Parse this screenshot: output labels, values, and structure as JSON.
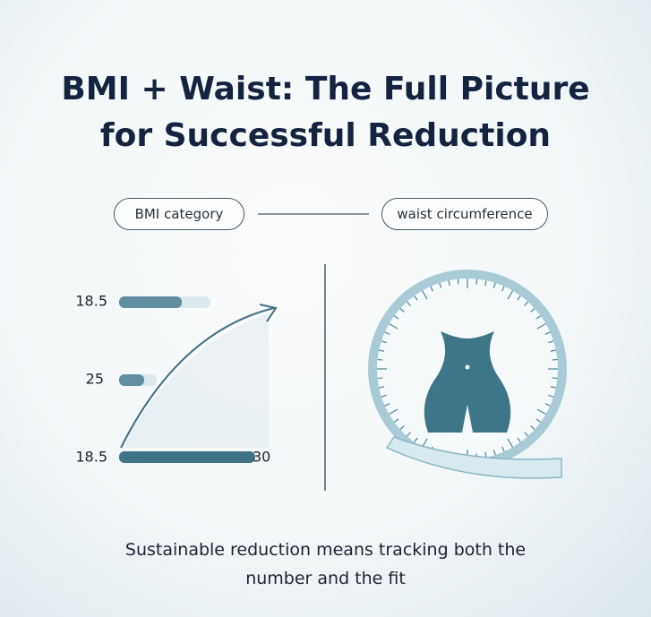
{
  "title": "BMI + Waist: The Full Picture for Successful Reduction",
  "pills": {
    "left": "BMI category",
    "right": "waist circumference"
  },
  "scale_labels": [
    "18.5",
    "25",
    "18.5",
    "30"
  ],
  "caption": "Sustainable reduction means tracking both the number and the fit"
}
